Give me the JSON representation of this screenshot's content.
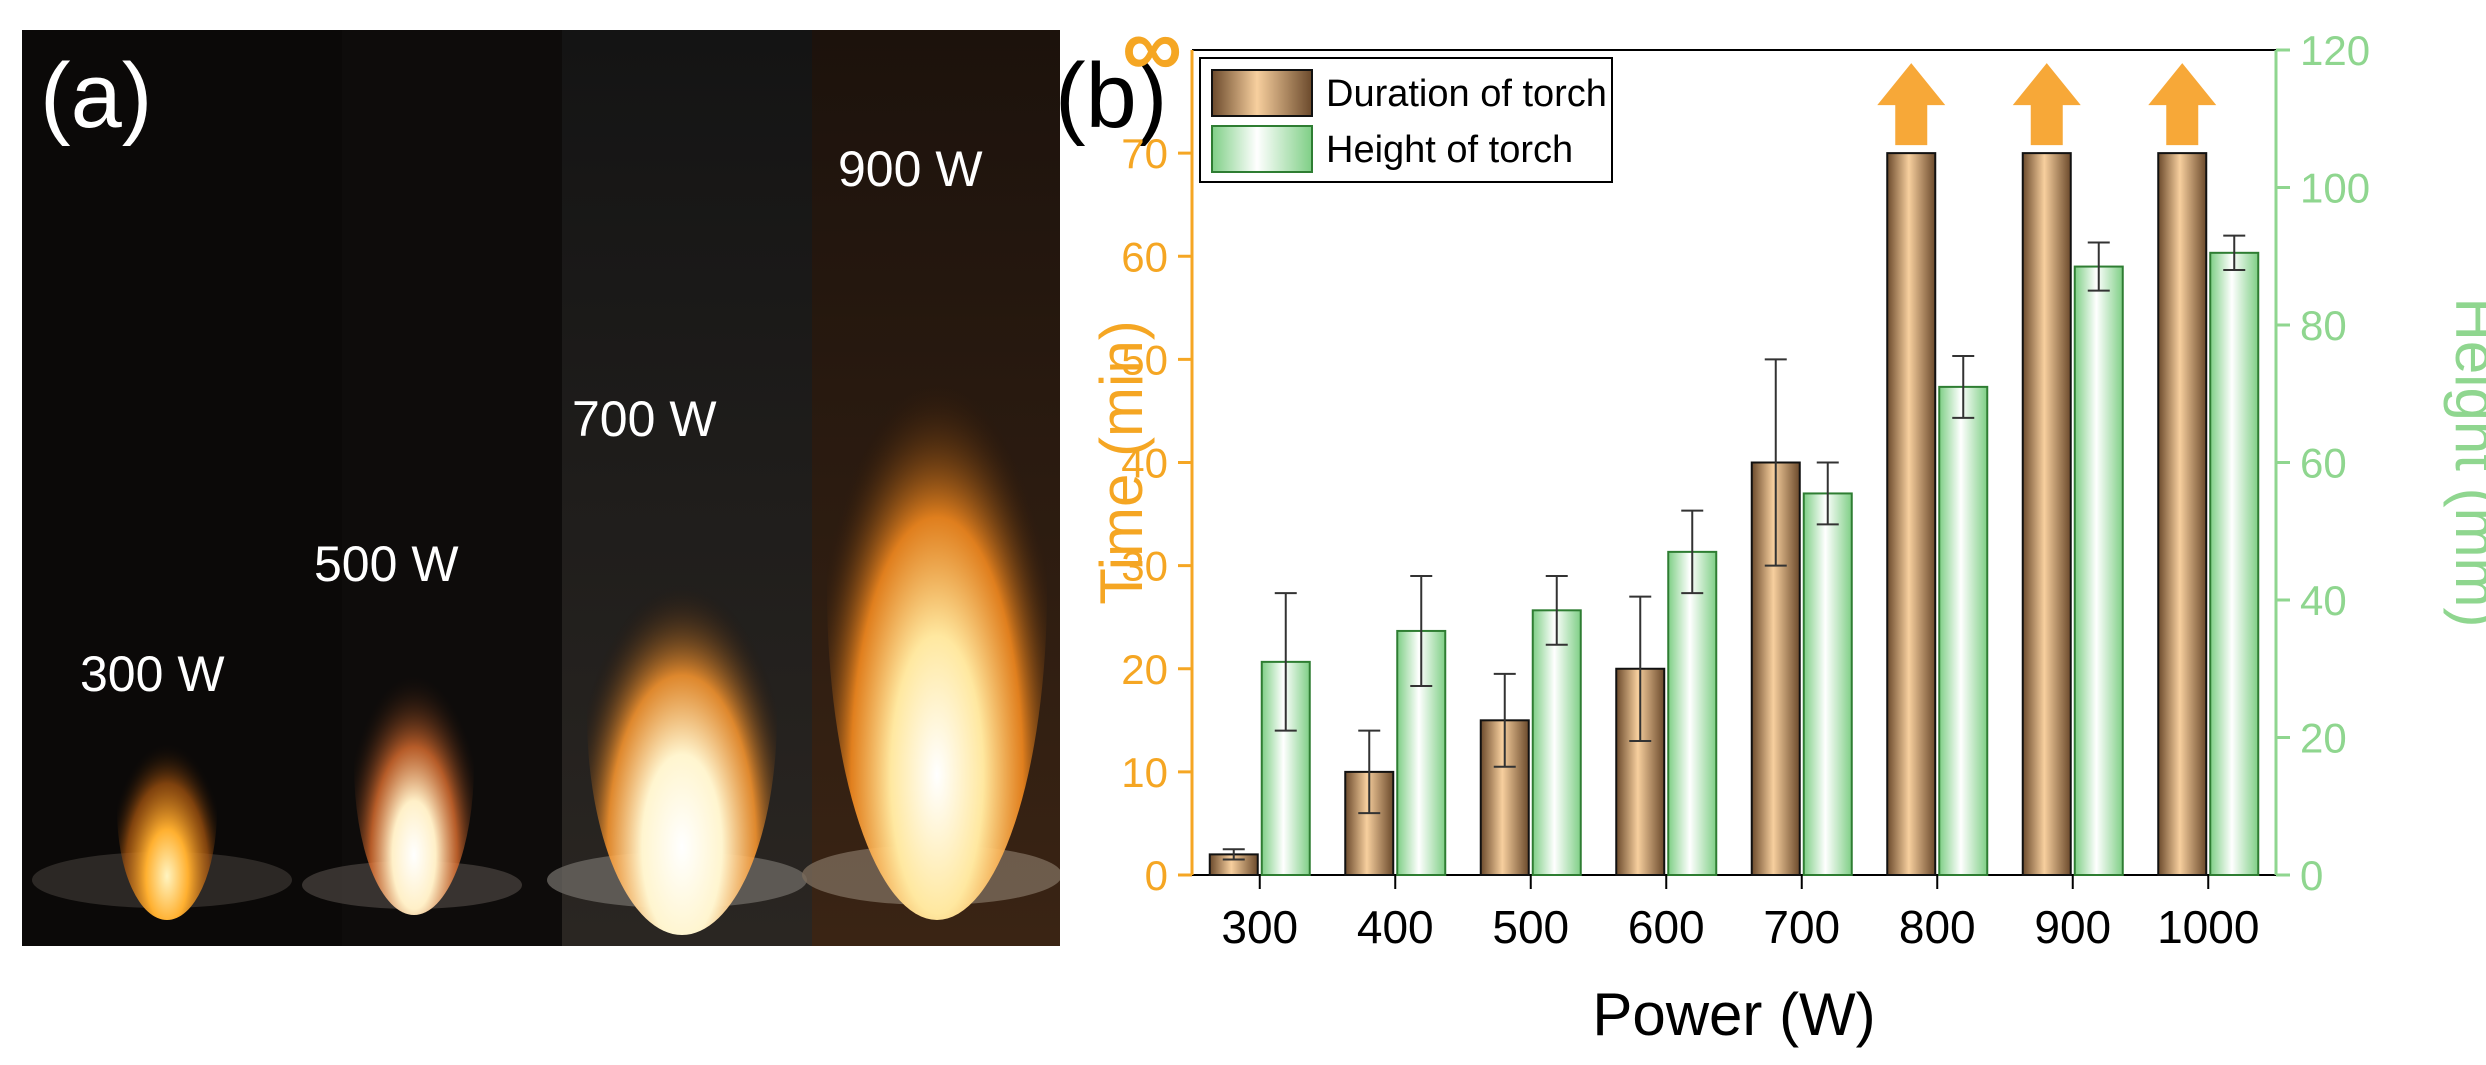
{
  "panel_a": {
    "label": "(a)",
    "photo_labels": [
      "300 W",
      "500 W",
      "700 W",
      "900 W"
    ]
  },
  "panel_b": {
    "label": "(b)"
  },
  "chart_data": {
    "type": "bar",
    "xlabel": "Power (W)",
    "categories": [
      "300",
      "400",
      "500",
      "600",
      "700",
      "800",
      "900",
      "1000"
    ],
    "y_left": {
      "label": "Time (min)",
      "range": [
        0,
        80
      ],
      "ticks": [
        0,
        10,
        20,
        30,
        40,
        50,
        60,
        70
      ],
      "top_symbol": "∞",
      "color": "#f5a623"
    },
    "y_right": {
      "label": "Height (mm)",
      "range": [
        0,
        120
      ],
      "ticks": [
        0,
        20,
        40,
        60,
        80,
        100,
        120
      ],
      "color": "#8fd68f"
    },
    "series": [
      {
        "name": "Duration of torch",
        "axis": "left",
        "values": [
          2,
          10,
          15,
          20,
          40,
          70,
          70,
          70
        ],
        "errors": [
          0.5,
          4,
          4.5,
          7,
          10,
          0,
          0,
          0
        ],
        "infinite": [
          false,
          false,
          false,
          false,
          false,
          true,
          true,
          true
        ]
      },
      {
        "name": "Height of torch",
        "axis": "right",
        "values": [
          31,
          35.5,
          38.5,
          47,
          55.5,
          71,
          88.5,
          90.5
        ],
        "errors": [
          10,
          8,
          5,
          6,
          4.5,
          4.5,
          3.5,
          2.5
        ]
      }
    ],
    "legend": {
      "position": "top-left",
      "entries": [
        "Duration of torch",
        "Height of torch"
      ]
    },
    "grid": false
  }
}
